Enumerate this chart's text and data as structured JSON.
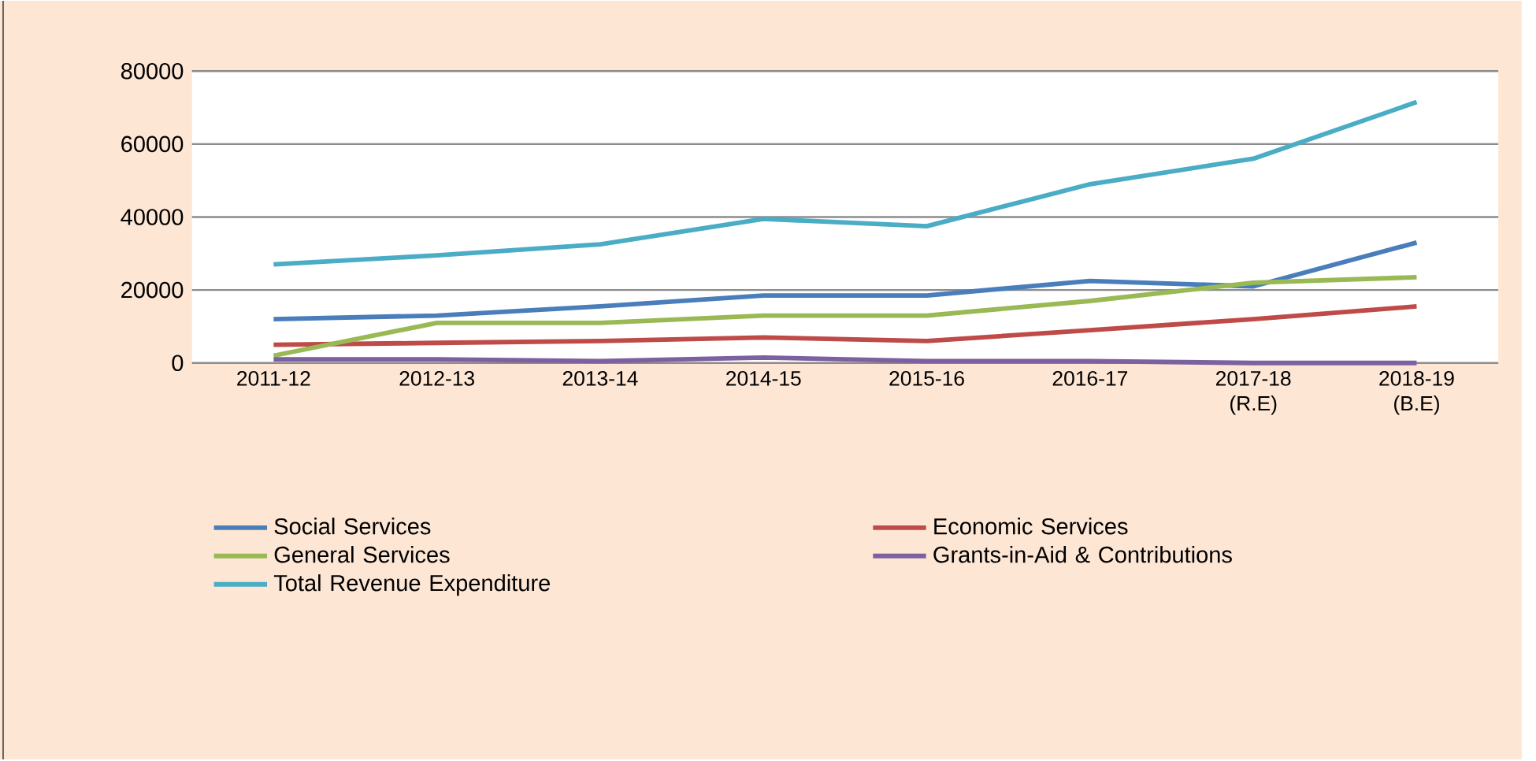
{
  "chart_data": {
    "type": "line",
    "categories": [
      "2011-12",
      "2012-13",
      "2013-14",
      "2014-15",
      "2015-16",
      "2016-17",
      "2017-18 (R.E)",
      "2018-19 (B.E)"
    ],
    "series": [
      {
        "name": "Social Services",
        "color": "#4a7ebb",
        "values": [
          12000,
          13000,
          15500,
          18500,
          18500,
          22500,
          21000,
          33000
        ]
      },
      {
        "name": "Economic Services",
        "color": "#be4b48",
        "values": [
          5000,
          5500,
          6000,
          7000,
          6000,
          9000,
          12000,
          15500
        ]
      },
      {
        "name": "General Services",
        "color": "#98b954",
        "values": [
          2000,
          11000,
          11000,
          13000,
          13000,
          17000,
          22000,
          23500
        ]
      },
      {
        "name": "Grants-in-Aid & Contributions",
        "color": "#7d60a0",
        "values": [
          1000,
          1000,
          500,
          1500,
          500,
          500,
          0,
          0
        ]
      },
      {
        "name": "Total Revenue Expenditure",
        "color": "#4bacc6",
        "values": [
          27000,
          29500,
          32500,
          39500,
          37500,
          49000,
          56000,
          71500
        ]
      }
    ],
    "ylim": [
      0,
      80000
    ],
    "yticks": [
      0,
      20000,
      40000,
      60000,
      80000
    ],
    "grid": "y",
    "legend": "bottom",
    "marker": "none",
    "line_style": "solid"
  }
}
